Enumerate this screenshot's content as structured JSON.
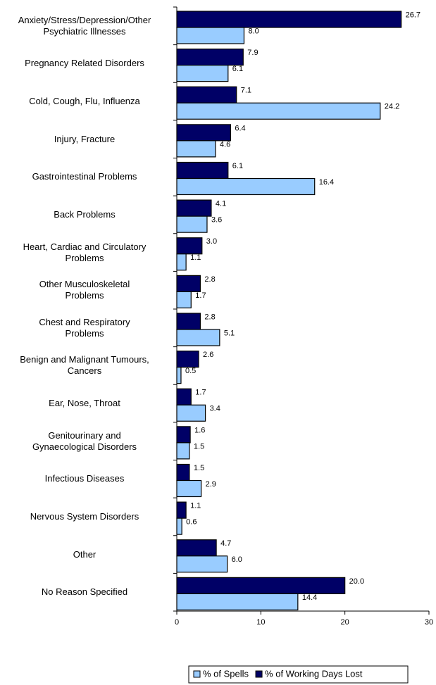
{
  "chart_data": {
    "type": "hbar",
    "categories": [
      "Anxiety/Stress/Depression/Other\nPsychiatric Illnesses",
      "Pregnancy Related Disorders",
      "Cold, Cough, Flu, Influenza",
      "Injury, Fracture",
      "Gastrointestinal Problems",
      "Back Problems",
      "Heart, Cardiac and Circulatory\nProblems",
      "Other Musculoskeletal\nProblems",
      "Chest and Respiratory\nProblems",
      "Benign and Malignant Tumours,\nCancers",
      "Ear, Nose, Throat",
      "Genitourinary and\nGynaecological Disorders",
      "Infectious Diseases",
      "Nervous System Disorders",
      "Other",
      "No Reason Specified"
    ],
    "series": [
      {
        "name": "% of Working Days Lost",
        "color": "#000066",
        "values": [
          26.7,
          7.9,
          7.1,
          6.4,
          6.1,
          4.1,
          3.0,
          2.8,
          2.8,
          2.6,
          1.7,
          1.6,
          1.5,
          1.1,
          4.7,
          20.0
        ],
        "value_labels": [
          "26.7",
          "7.9",
          "7.1",
          "6.4",
          "6.1",
          "4.1",
          "3.0",
          "2.8",
          "2.8",
          "2.6",
          "1.7",
          "1.6",
          "1.5",
          "1.1",
          "4.7",
          "20.0"
        ]
      },
      {
        "name": "% of Spells",
        "color": "#99ccff",
        "values": [
          8.0,
          6.1,
          24.2,
          4.6,
          16.4,
          3.6,
          1.1,
          1.7,
          5.1,
          0.5,
          3.4,
          1.5,
          2.9,
          0.6,
          6.0,
          14.4
        ],
        "value_labels": [
          "8.0",
          "6.1",
          "24.2",
          "4.6",
          "16.4",
          "3.6",
          "1.1",
          "1.7",
          "5.1",
          "0.5",
          "3.4",
          "1.5",
          "2.9",
          "0.6",
          "6.0",
          "14.4"
        ]
      }
    ],
    "xlim": [
      0,
      30
    ],
    "xticks": [
      0,
      10,
      20,
      30
    ],
    "grid": false,
    "legend": "bottom"
  }
}
